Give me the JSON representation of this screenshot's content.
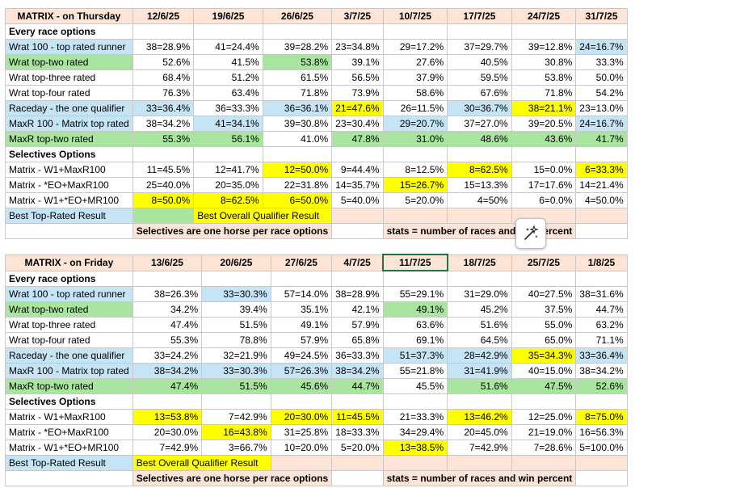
{
  "colors": {
    "yellow": "#ffff00",
    "green": "#a9e4a1",
    "blue": "#c5e4f5",
    "peach": "#fce4d6",
    "red_text": "#e00000"
  },
  "tables": [
    {
      "header": [
        "MATRIX - on Thursday",
        "12/6/25",
        "19/6/25",
        "26/6/25",
        "3/7/25",
        "10/7/25",
        "17/7/25",
        "24/7/25",
        "31/7/25"
      ],
      "rows": [
        {
          "type": "section",
          "label": "Every race options"
        },
        {
          "type": "data",
          "label": "Wrat 100 - top rated runner",
          "label_color": "blue",
          "cells": [
            [
              "38=28.9%",
              ""
            ],
            [
              "41=24.4%",
              ""
            ],
            [
              "39=28.2%",
              ""
            ],
            [
              "23=34.8%",
              ""
            ],
            [
              "29=17.2%",
              ""
            ],
            [
              "37=29.7%",
              ""
            ],
            [
              "39=12.8%",
              ""
            ],
            [
              "24=16.7%",
              "blue"
            ]
          ]
        },
        {
          "type": "data",
          "label": "Wrat top-two rated",
          "label_color": "green",
          "cells": [
            [
              "52.6%",
              ""
            ],
            [
              "41.5%",
              ""
            ],
            [
              "53.8%",
              "green"
            ],
            [
              "39.1%",
              ""
            ],
            [
              "27.6%",
              ""
            ],
            [
              "40.5%",
              ""
            ],
            [
              "30.8%",
              ""
            ],
            [
              "33.3%",
              ""
            ]
          ]
        },
        {
          "type": "data",
          "label": "Wrat top-three rated",
          "label_color": "",
          "cells": [
            [
              "68.4%",
              ""
            ],
            [
              "51.2%",
              ""
            ],
            [
              "61.5%",
              ""
            ],
            [
              "56.5%",
              ""
            ],
            [
              "37.9%",
              ""
            ],
            [
              "59.5%",
              ""
            ],
            [
              "53.8%",
              ""
            ],
            [
              "50.0%",
              ""
            ]
          ]
        },
        {
          "type": "data",
          "label": "Wrat top-four rated",
          "label_color": "",
          "cells": [
            [
              "76.3%",
              ""
            ],
            [
              "63.4%",
              ""
            ],
            [
              "71.8%",
              ""
            ],
            [
              "73.9%",
              ""
            ],
            [
              "58.6%",
              ""
            ],
            [
              "67.6%",
              ""
            ],
            [
              "71.8%",
              ""
            ],
            [
              "54.2%",
              ""
            ]
          ]
        },
        {
          "type": "data",
          "label": "Raceday - the one qualifier",
          "label_color": "blue",
          "cells": [
            [
              "33=36.4%",
              "blue"
            ],
            [
              "36=33.3%",
              ""
            ],
            [
              "36=36.1%",
              "blue"
            ],
            [
              "21=47.6%",
              "yellow"
            ],
            [
              "26=11.5%",
              ""
            ],
            [
              "30=36.7%",
              "blue"
            ],
            [
              "38=21.1%",
              "yellow"
            ],
            [
              "23=13.0%",
              ""
            ]
          ]
        },
        {
          "type": "data",
          "label": "MaxR 100 - Matrix top rated",
          "label_color": "blue",
          "cells": [
            [
              "38=34.2%",
              ""
            ],
            [
              "41=34.1%",
              "blue"
            ],
            [
              "39=30.8%",
              ""
            ],
            [
              "23=30.4%",
              ""
            ],
            [
              "29=20.7%",
              "blue"
            ],
            [
              "37=27.0%",
              ""
            ],
            [
              "39=20.5%",
              ""
            ],
            [
              "24=16.7%",
              "blue"
            ]
          ]
        },
        {
          "type": "data",
          "label": "MaxR top-two rated",
          "label_color": "green",
          "cells": [
            [
              "55.3%",
              "green"
            ],
            [
              "56.1%",
              "green"
            ],
            [
              "41.0%",
              ""
            ],
            [
              "47.8%",
              "green"
            ],
            [
              "31.0%",
              "green"
            ],
            [
              "48.6%",
              "green"
            ],
            [
              "43.6%",
              "green"
            ],
            [
              "41.7%",
              "green"
            ]
          ]
        },
        {
          "type": "section",
          "label": "Selectives Options"
        },
        {
          "type": "data",
          "label": "Matrix - W1+MaxR100",
          "label_color": "",
          "cells": [
            [
              "11=45.5%",
              ""
            ],
            [
              "12=41.7%",
              ""
            ],
            [
              "12=50.0%",
              "yellow"
            ],
            [
              "9=44.4%",
              ""
            ],
            [
              "8=12.5%",
              ""
            ],
            [
              "8=62.5%",
              "yellow"
            ],
            [
              "15=0.0%",
              ""
            ],
            [
              "6=33.3%",
              "yellow"
            ]
          ]
        },
        {
          "type": "data",
          "label": "Matrix - *EO+MaxR100",
          "label_color": "",
          "cells": [
            [
              "25=40.0%",
              ""
            ],
            [
              "20=35.0%",
              ""
            ],
            [
              "22=31.8%",
              ""
            ],
            [
              "14=35.7%",
              ""
            ],
            [
              "15=26.7%",
              "yellow"
            ],
            [
              "15=13.3%",
              ""
            ],
            [
              "17=17.6%",
              ""
            ],
            [
              "14=21.4%",
              ""
            ]
          ]
        },
        {
          "type": "data",
          "label": "Matrix - W1+*EO+MR100",
          "label_color": "",
          "cells": [
            [
              "8=50.0%",
              "yellow"
            ],
            [
              "8=62.5%",
              "yellow"
            ],
            [
              "6=50.0%",
              "yellow"
            ],
            [
              "5=40.0%",
              ""
            ],
            [
              "5=20.0%",
              ""
            ],
            [
              "4=50%",
              ""
            ],
            [
              "6=0.0%",
              ""
            ],
            [
              "4=50.0%",
              ""
            ]
          ]
        }
      ],
      "legend": {
        "best_top_rated": "Best Top-Rated Result",
        "best_overall": "Best Overall Qualifier Result"
      },
      "note_left": "Selectives are one horse per race options",
      "note_right": "stats = number of races and win percent"
    },
    {
      "header": [
        "MATRIX - on Friday",
        "13/6/25",
        "20/6/25",
        "27/6/25",
        "4/7/25",
        "11/7/25",
        "18/7/25",
        "25/7/25",
        "1/8/25"
      ],
      "rows": [
        {
          "type": "section",
          "label": "Every race options"
        },
        {
          "type": "data",
          "label": "Wrat 100 - top rated runner",
          "label_color": "blue",
          "cells": [
            [
              "38=26.3%",
              ""
            ],
            [
              "33=30.3%",
              "blue"
            ],
            [
              "57=14.0%",
              ""
            ],
            [
              "38=28.9%",
              ""
            ],
            [
              "55=29.1%",
              ""
            ],
            [
              "31=29.0%",
              ""
            ],
            [
              "40=27.5%",
              ""
            ],
            [
              "38=31.6%",
              ""
            ]
          ]
        },
        {
          "type": "data",
          "label": "Wrat top-two rated",
          "label_color": "green",
          "cells": [
            [
              "34.2%",
              ""
            ],
            [
              "39.4%",
              ""
            ],
            [
              "35.1%",
              ""
            ],
            [
              "42.1%",
              ""
            ],
            [
              "49.1%",
              "green"
            ],
            [
              "45.2%",
              ""
            ],
            [
              "37.5%",
              ""
            ],
            [
              "44.7%",
              ""
            ]
          ]
        },
        {
          "type": "data",
          "label": "Wrat top-three rated",
          "label_color": "",
          "cells": [
            [
              "47.4%",
              ""
            ],
            [
              "51.5%",
              ""
            ],
            [
              "49.1%",
              ""
            ],
            [
              "57.9%",
              ""
            ],
            [
              "63.6%",
              ""
            ],
            [
              "51.6%",
              ""
            ],
            [
              "55.0%",
              ""
            ],
            [
              "63.2%",
              ""
            ]
          ]
        },
        {
          "type": "data",
          "label": "Wrat top-four rated",
          "label_color": "",
          "cells": [
            [
              "55.3%",
              ""
            ],
            [
              "78.8%",
              ""
            ],
            [
              "57.9%",
              ""
            ],
            [
              "65.8%",
              ""
            ],
            [
              "69.1%",
              ""
            ],
            [
              "64.5%",
              ""
            ],
            [
              "65.0%",
              ""
            ],
            [
              "71.1%",
              ""
            ]
          ]
        },
        {
          "type": "data",
          "label": "Raceday - the one qualifier",
          "label_color": "blue",
          "cells": [
            [
              "33=24.2%",
              ""
            ],
            [
              "32=21.9%",
              ""
            ],
            [
              "49=24.5%",
              ""
            ],
            [
              "36=33.3%",
              ""
            ],
            [
              "51=37.3%",
              "blue"
            ],
            [
              "28=42.9%",
              "blue"
            ],
            [
              "35=34.3%",
              "yellow"
            ],
            [
              "33=36.4%",
              "blue"
            ]
          ]
        },
        {
          "type": "data",
          "label": "MaxR 100 - Matrix top rated",
          "label_color": "blue",
          "cells": [
            [
              "38=34.2%",
              "blue"
            ],
            [
              "33=30.3%",
              "blue"
            ],
            [
              "57=26.3%",
              "blue"
            ],
            [
              "38=34.2%",
              "blue"
            ],
            [
              "55=21.8%",
              ""
            ],
            [
              "31=41.9%",
              "blue"
            ],
            [
              "40=15.0%",
              ""
            ],
            [
              "38=34.2%",
              ""
            ]
          ]
        },
        {
          "type": "data",
          "label": "MaxR top-two rated",
          "label_color": "green",
          "cells": [
            [
              "47.4%",
              "green"
            ],
            [
              "51.5%",
              "green"
            ],
            [
              "45.6%",
              "green"
            ],
            [
              "44.7%",
              "green"
            ],
            [
              "45.5%",
              ""
            ],
            [
              "51.6%",
              "green"
            ],
            [
              "47.5%",
              "green"
            ],
            [
              "52.6%",
              "green"
            ]
          ]
        },
        {
          "type": "section",
          "label": "Selectives Options"
        },
        {
          "type": "data",
          "label": "Matrix - W1+MaxR100",
          "label_color": "",
          "cells": [
            [
              "13=53.8%",
              "yellow"
            ],
            [
              "7=42.9%",
              ""
            ],
            [
              "20=30.0%",
              "yellow"
            ],
            [
              "11=45.5%",
              "yellow"
            ],
            [
              "21=33.3%",
              ""
            ],
            [
              "13=46.2%",
              "yellow"
            ],
            [
              "12=25.0%",
              ""
            ],
            [
              "8=75.0%",
              "yellow"
            ]
          ]
        },
        {
          "type": "data",
          "label": "Matrix - *EO+MaxR100",
          "label_color": "",
          "cells": [
            [
              "20=30.0%",
              ""
            ],
            [
              "16=43.8%",
              "yellow"
            ],
            [
              "31=25.8%",
              ""
            ],
            [
              "18=33.3%",
              ""
            ],
            [
              "34=29.4%",
              ""
            ],
            [
              "20=45.0%",
              ""
            ],
            [
              "21=19.0%",
              ""
            ],
            [
              "16=56.3%",
              ""
            ]
          ]
        },
        {
          "type": "data",
          "label": "Matrix - W1+*EO+MR100",
          "label_color": "",
          "cells": [
            [
              "7=42.9%",
              ""
            ],
            [
              "3=66.7%",
              ""
            ],
            [
              "10=20.0%",
              ""
            ],
            [
              "5=20.0%",
              ""
            ],
            [
              "13=38.5%",
              "yellow"
            ],
            [
              "7=42.9%",
              ""
            ],
            [
              "7=28.6%",
              ""
            ],
            [
              "5=100.0%",
              ""
            ]
          ]
        }
      ],
      "legend": {
        "best_top_rated": "Best Top-Rated Result",
        "best_overall": "Best Overall Qualifier Result"
      },
      "note_left": "Selectives are one horse per race options",
      "note_right": "stats = number of races and win percent"
    }
  ],
  "ai_button_icon": "sparkle-wand-icon"
}
